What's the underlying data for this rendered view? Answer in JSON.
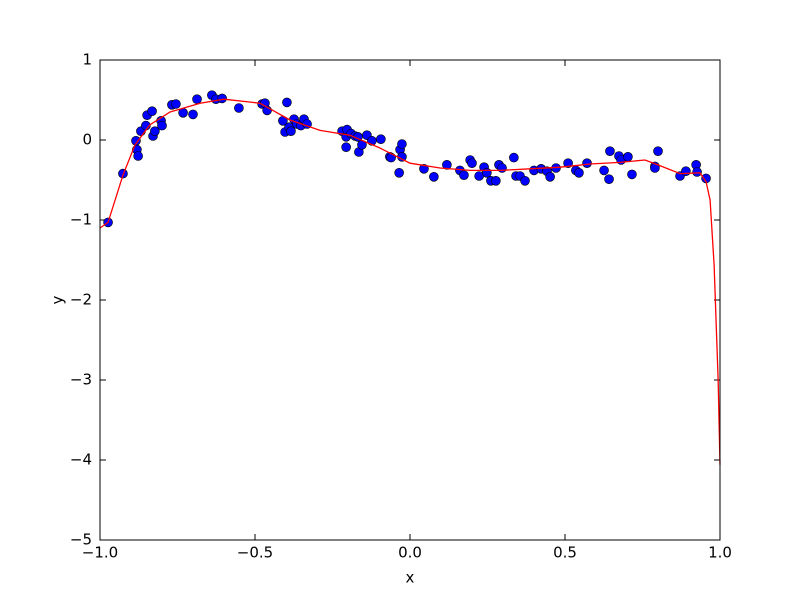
{
  "chart_data": {
    "type": "scatter",
    "xlabel": "x",
    "ylabel": "y",
    "xlim": [
      -1,
      1
    ],
    "ylim": [
      -5,
      1
    ],
    "xticks": [
      {
        "value": -1,
        "label": "−1.0"
      },
      {
        "value": -0.5,
        "label": "−0.5"
      },
      {
        "value": 0,
        "label": "0.0"
      },
      {
        "value": 0.5,
        "label": "0.5"
      },
      {
        "value": 1,
        "label": "1.0"
      }
    ],
    "yticks": [
      {
        "value": -5,
        "label": "−5"
      },
      {
        "value": -4,
        "label": "−4"
      },
      {
        "value": -3,
        "label": "−3"
      },
      {
        "value": -2,
        "label": "−2"
      },
      {
        "value": -1,
        "label": "−1"
      },
      0,
      1
    ],
    "series": [
      {
        "type": "scatter",
        "color": "#0000ff",
        "x": [
          -0.974,
          -0.926,
          -0.884,
          -0.881,
          -0.877,
          -0.868,
          -0.852,
          -0.848,
          -0.832,
          -0.829,
          -0.823,
          -0.803,
          -0.8,
          -0.768,
          -0.755,
          -0.732,
          -0.7,
          -0.687,
          -0.639,
          -0.626,
          -0.606,
          -0.552,
          -0.477,
          -0.468,
          -0.461,
          -0.41,
          -0.403,
          -0.397,
          -0.39,
          -0.384,
          -0.374,
          -0.365,
          -0.352,
          -0.342,
          -0.332,
          -0.219,
          -0.206,
          -0.203,
          -0.206,
          -0.19,
          -0.177,
          -0.168,
          -0.165,
          -0.155,
          -0.139,
          -0.123,
          -0.094,
          -0.065,
          -0.061,
          -0.035,
          -0.032,
          -0.026,
          -0.026,
          0.045,
          0.077,
          0.119,
          0.161,
          0.174,
          0.194,
          0.2,
          0.223,
          0.239,
          0.248,
          0.261,
          0.277,
          0.287,
          0.297,
          0.335,
          0.342,
          0.355,
          0.371,
          0.4,
          0.423,
          0.442,
          0.452,
          0.471,
          0.51,
          0.535,
          0.545,
          0.571,
          0.626,
          0.642,
          0.645,
          0.674,
          0.681,
          0.703,
          0.716,
          0.79,
          0.79,
          0.8,
          0.871,
          0.89,
          0.923,
          0.926,
          0.955
        ],
        "values": [
          -1.03,
          -0.42,
          -0.01,
          -0.12,
          -0.2,
          0.11,
          0.18,
          0.31,
          0.36,
          0.05,
          0.11,
          0.24,
          0.18,
          0.44,
          0.45,
          0.34,
          0.32,
          0.51,
          0.56,
          0.51,
          0.52,
          0.4,
          0.45,
          0.46,
          0.37,
          0.24,
          0.1,
          0.47,
          0.16,
          0.11,
          0.26,
          0.2,
          0.18,
          0.26,
          0.2,
          0.11,
          0.04,
          0.13,
          -0.09,
          0.08,
          0.05,
          0.04,
          -0.15,
          -0.06,
          0.06,
          -0.01,
          0.01,
          -0.21,
          -0.22,
          -0.41,
          -0.12,
          -0.05,
          -0.21,
          -0.36,
          -0.46,
          -0.31,
          -0.38,
          -0.44,
          -0.25,
          -0.29,
          -0.45,
          -0.34,
          -0.41,
          -0.51,
          -0.51,
          -0.31,
          -0.35,
          -0.22,
          -0.45,
          -0.45,
          -0.51,
          -0.38,
          -0.36,
          -0.39,
          -0.46,
          -0.35,
          -0.29,
          -0.38,
          -0.41,
          -0.29,
          -0.38,
          -0.49,
          -0.14,
          -0.2,
          -0.25,
          -0.21,
          -0.43,
          -0.33,
          -0.35,
          -0.14,
          -0.45,
          -0.39,
          -0.31,
          -0.4,
          -0.48
        ]
      },
      {
        "type": "line",
        "color": "#ff0000",
        "x": [
          -1,
          -0.974,
          -0.926,
          -0.887,
          -0.839,
          -0.774,
          -0.677,
          -0.6,
          -0.484,
          -0.387,
          -0.29,
          -0.194,
          -0.097,
          0,
          0.097,
          0.194,
          0.29,
          0.387,
          0.484,
          0.581,
          0.677,
          0.758,
          0.806,
          0.871,
          0.935,
          0.955,
          0.968,
          0.981,
          0.994,
          1
        ],
        "values": [
          -1.1,
          -1.03,
          -0.44,
          -0.06,
          0.19,
          0.35,
          0.46,
          0.51,
          0.46,
          0.25,
          0.12,
          0.06,
          -0.1,
          -0.29,
          -0.35,
          -0.38,
          -0.38,
          -0.36,
          -0.34,
          -0.3,
          -0.28,
          -0.25,
          -0.32,
          -0.42,
          -0.41,
          -0.52,
          -0.75,
          -1.56,
          -3.0,
          -4.06
        ]
      }
    ]
  }
}
